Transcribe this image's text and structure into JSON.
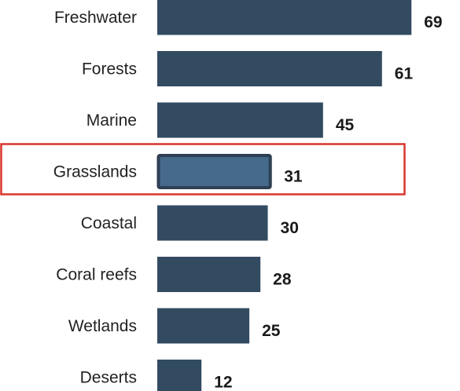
{
  "chart_data": {
    "type": "bar",
    "orientation": "horizontal",
    "title": "",
    "xlabel": "",
    "ylabel": "",
    "categories": [
      "Freshwater",
      "Forests",
      "Marine",
      "Grasslands",
      "Coastal",
      "Coral reefs",
      "Wetlands",
      "Deserts"
    ],
    "values": [
      69,
      61,
      45,
      31,
      30,
      28,
      25,
      12
    ],
    "xlim": [
      0,
      73
    ],
    "grid": false,
    "legend": "none",
    "highlighted_category": "Grasslands",
    "colors": {
      "bar": "#334b61",
      "highlight_bar": "#456a8b",
      "highlight_bar_border": "#2e3f53",
      "highlight_box": "#d9362b"
    }
  }
}
